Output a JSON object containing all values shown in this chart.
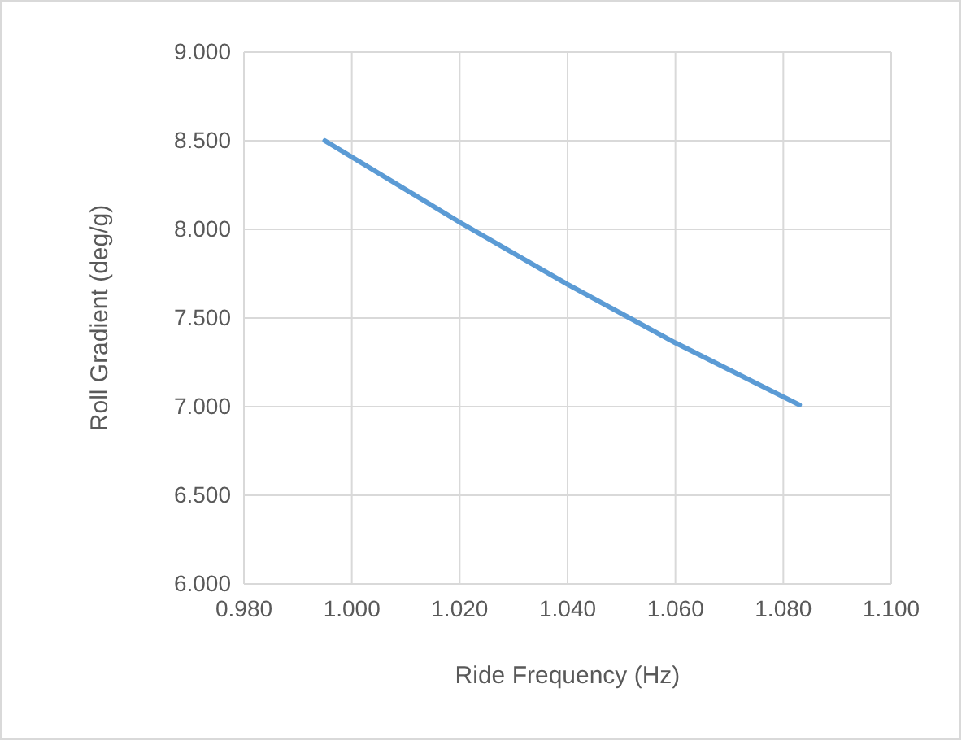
{
  "chart_data": {
    "type": "line",
    "xlabel": "Ride Frequency (Hz)",
    "ylabel": "Roll Gradient (deg/g)",
    "x": [
      0.995,
      1.02,
      1.04,
      1.06,
      1.083
    ],
    "series": [
      {
        "color": "#5b9bd5",
        "values": [
          8.5,
          8.04,
          7.69,
          7.36,
          7.01
        ]
      }
    ],
    "xlim": [
      0.98,
      1.1
    ],
    "xticks": [
      {
        "value": 0.98,
        "label": "0.980"
      },
      {
        "value": 1,
        "label": "1.000"
      },
      {
        "value": 1.02,
        "label": "1.020"
      },
      {
        "value": 1.04,
        "label": "1.040"
      },
      {
        "value": 1.06,
        "label": "1.060"
      },
      {
        "value": 1.08,
        "label": "1.080"
      },
      {
        "value": 1.1,
        "label": "1.100"
      }
    ],
    "ylim": [
      6,
      9
    ],
    "yticks": [
      {
        "value": 6,
        "label": "6.000"
      },
      {
        "value": 6.5,
        "label": "6.500"
      },
      {
        "value": 7,
        "label": "7.000"
      },
      {
        "value": 7.5,
        "label": "7.500"
      },
      {
        "value": 8,
        "label": "8.000"
      },
      {
        "value": 8.5,
        "label": "8.500"
      },
      {
        "value": 9,
        "label": "9.000"
      }
    ],
    "grid": true,
    "marker": "none",
    "line_style": "solid"
  }
}
